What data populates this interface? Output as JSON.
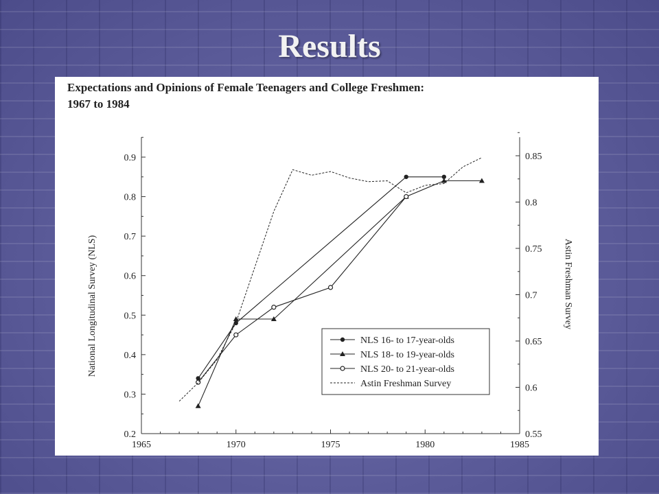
{
  "slide": {
    "title": "Results"
  },
  "chart_data": {
    "type": "line",
    "title": "Expectations and Opinions of Female Teenagers and College Freshmen: 1967 to 1984",
    "title_lines": [
      "Expectations and Opinions of Female Teenagers and College Freshmen:",
      "1967 to 1984"
    ],
    "xlim": [
      1965,
      1985
    ],
    "x_ticks": [
      1965,
      1970,
      1975,
      1980,
      1985
    ],
    "ylim_left": [
      0.2,
      0.95
    ],
    "ylim_right": [
      0.55,
      0.8775
    ],
    "ylabel": "National Longitudinal Survey (NLS)",
    "ylabel_right": "Astin Freshman Survey",
    "y_ticks_left": [
      "0.2",
      "0.3",
      "0.4",
      "0.5",
      "0.6",
      "0.7",
      "0.8",
      "0.9"
    ],
    "y_ticks_right": [
      "0.55",
      "0.6",
      "0.65",
      "0.7",
      "0.75",
      "0.8",
      "0.85"
    ],
    "grid": false,
    "legend_position": "bottom-right",
    "series": [
      {
        "name": "NLS 16- to 17-year-olds",
        "axis": "left",
        "marker": "filled-circle",
        "style": "solid",
        "x": [
          1968,
          1970,
          1979,
          1981
        ],
        "y": [
          0.34,
          0.48,
          0.85,
          0.85
        ]
      },
      {
        "name": "NLS 18- to 19-year-olds",
        "axis": "left",
        "marker": "filled-triangle",
        "style": "solid",
        "x": [
          1968,
          1970,
          1972,
          1979,
          1981,
          1983
        ],
        "y": [
          0.27,
          0.49,
          0.49,
          0.8,
          0.84,
          0.84
        ]
      },
      {
        "name": "NLS 20- to 21-year-olds",
        "axis": "left",
        "marker": "open-circle",
        "style": "solid",
        "x": [
          1968,
          1970,
          1972,
          1975,
          1979
        ],
        "y": [
          0.33,
          0.45,
          0.52,
          0.57,
          0.8
        ]
      },
      {
        "name": "Astin Freshman Survey",
        "axis": "right",
        "marker": "none",
        "style": "dashed",
        "x": [
          1967,
          1968,
          1969,
          1970,
          1971,
          1972,
          1973,
          1974,
          1975,
          1976,
          1977,
          1978,
          1979,
          1980,
          1981,
          1982,
          1983
        ],
        "y": [
          0.585,
          0.605,
          0.63,
          0.67,
          0.73,
          0.79,
          0.835,
          0.829,
          0.833,
          0.826,
          0.822,
          0.823,
          0.81,
          0.818,
          0.82,
          0.838,
          0.848
        ]
      }
    ]
  }
}
